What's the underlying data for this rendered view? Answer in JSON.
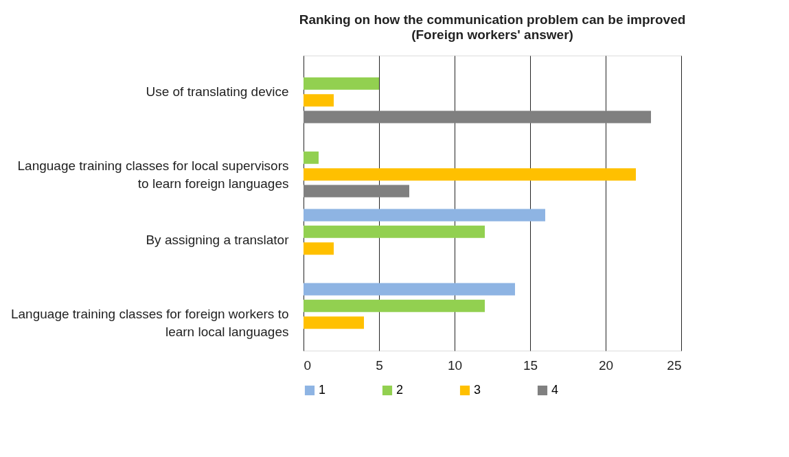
{
  "chart_data": {
    "type": "bar",
    "orientation": "horizontal",
    "title": "Ranking on how the communication problem can be improved",
    "subtitle": "(Foreign workers' answer)",
    "categories": [
      "Use of translating device",
      "Language training classes for local supervisors to learn foreign languages",
      "By assigning a translator",
      "Language training classes for foreign workers to learn local languages"
    ],
    "series": [
      {
        "name": "1",
        "color": "#8eb4e3",
        "values": [
          null,
          null,
          16,
          14
        ]
      },
      {
        "name": "2",
        "color": "#92d050",
        "values": [
          5,
          1,
          12,
          12
        ]
      },
      {
        "name": "3",
        "color": "#ffc000",
        "values": [
          2,
          22,
          2,
          4
        ]
      },
      {
        "name": "4",
        "color": "#808080",
        "values": [
          23,
          7,
          null,
          null
        ]
      }
    ],
    "xlim": [
      0,
      25
    ],
    "xticks": [
      0,
      5,
      10,
      15,
      20,
      25
    ],
    "grid": "x",
    "legend": "bottom"
  }
}
